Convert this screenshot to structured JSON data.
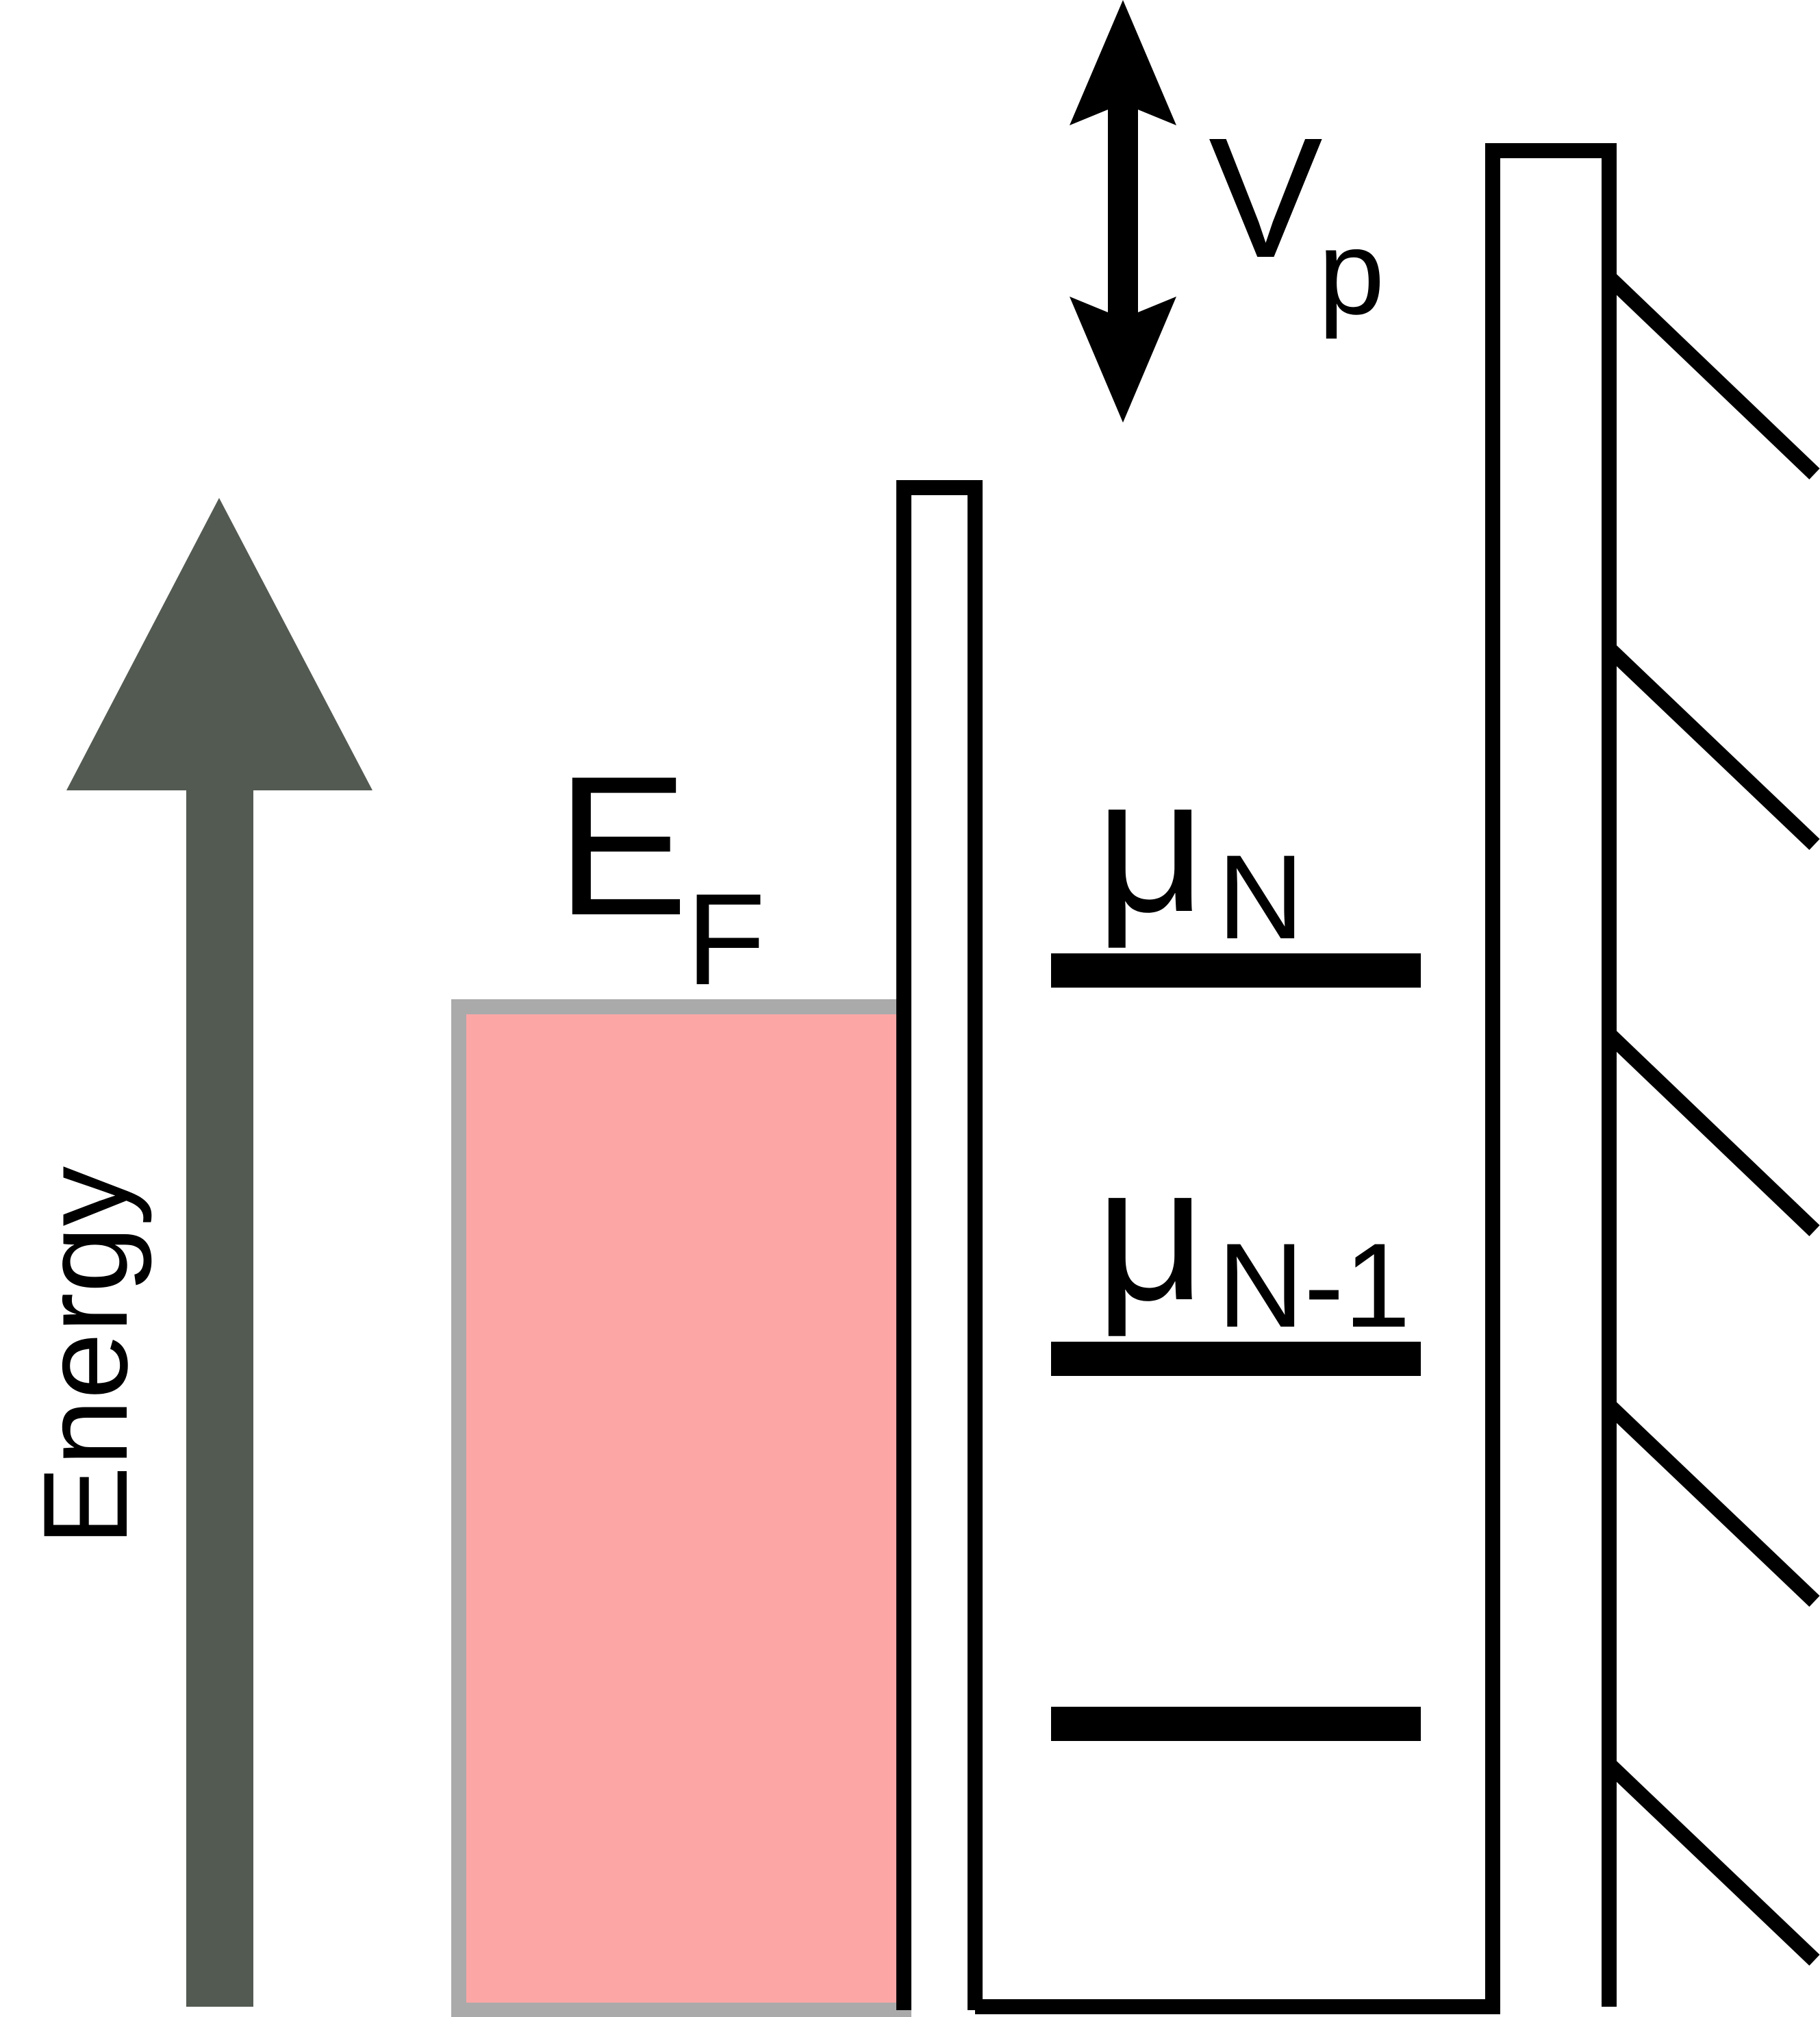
{
  "diagram": {
    "axis_label": "Energy",
    "fermi_label": {
      "main": "E",
      "sub": "F"
    },
    "plunger_label": {
      "main": "V",
      "sub": "p"
    },
    "level_labels": [
      {
        "main": "μ",
        "sub": "N"
      },
      {
        "main": "μ",
        "sub": "N-1"
      }
    ]
  },
  "colors": {
    "axis_arrow": "#535a52",
    "lead_fill": "#fda6a6",
    "lead_border": "#aaaaaa",
    "stroke": "#000000",
    "background": "#ffffff"
  },
  "icons": {
    "axis_arrow": "up-arrow-icon",
    "plunger_arrow": "double-vertical-arrow-icon",
    "ground_hatching": "hatch-lines-icon"
  }
}
